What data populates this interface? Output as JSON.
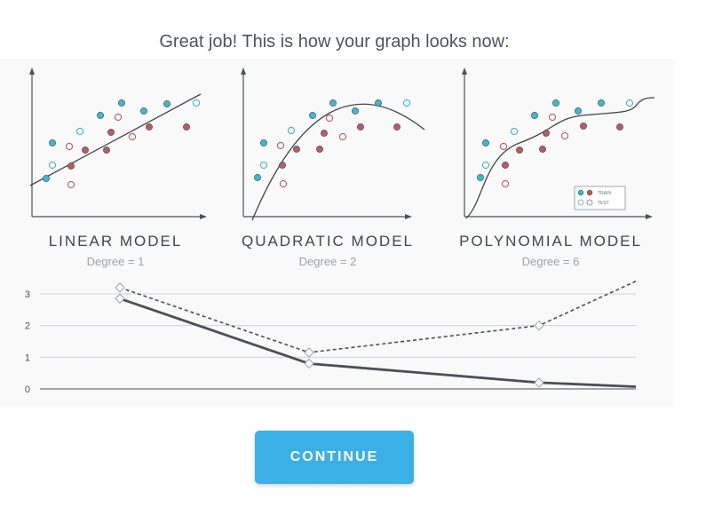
{
  "headline": "Great job! This is how your graph looks now:",
  "models": [
    {
      "title": "LINEAR MODEL",
      "degree": "Degree = 1"
    },
    {
      "title": "QUADRATIC MODEL",
      "degree": "Degree = 2"
    },
    {
      "title": "POLYNOMIAL MODEL",
      "degree": "Degree = 6"
    }
  ],
  "legend": {
    "train": "TRAIN",
    "test": "TEST"
  },
  "colors": {
    "train": "#3eb7cf",
    "test": "#c05a5a",
    "accent": "#3ab0e6",
    "line": "#4a5058"
  },
  "button": {
    "label": "CONTINUE"
  },
  "chart_data": {
    "type": "line",
    "x": [
      1,
      2,
      6,
      7
    ],
    "ylim": [
      0,
      3
    ],
    "y_ticks": [
      "0",
      "1",
      "2",
      "3"
    ],
    "grid": true,
    "series": [
      {
        "style": "solid",
        "values": [
          2.85,
          0.8,
          0.2,
          0.07
        ],
        "markers": [
          true,
          true,
          true,
          false
        ]
      },
      {
        "style": "dashed",
        "values": [
          3.2,
          1.15,
          2.0,
          3.4
        ],
        "markers": [
          true,
          true,
          true,
          false
        ]
      }
    ]
  }
}
